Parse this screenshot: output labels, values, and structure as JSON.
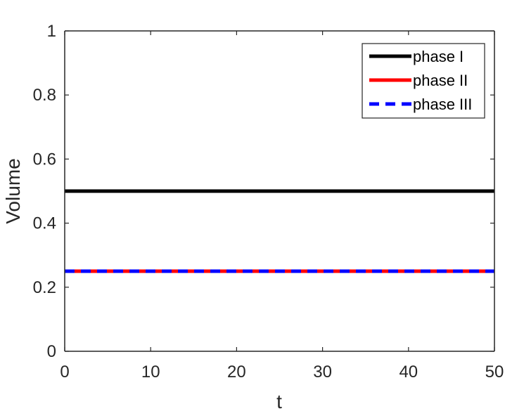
{
  "chart_data": {
    "type": "line",
    "title": "",
    "xlabel": "t",
    "ylabel": "Volume",
    "xlim": [
      0,
      50
    ],
    "ylim": [
      0,
      1
    ],
    "xticks": [
      0,
      10,
      20,
      30,
      40,
      50
    ],
    "yticks": [
      0,
      0.2,
      0.4,
      0.6,
      0.8,
      1
    ],
    "xtick_labels": [
      "0",
      "10",
      "20",
      "30",
      "40",
      "50"
    ],
    "ytick_labels": [
      "0",
      "0.2",
      "0.4",
      "0.6",
      "0.8",
      "1"
    ],
    "grid": false,
    "legend_position": "top-right",
    "series": [
      {
        "name": "phase I",
        "x": [
          0,
          50
        ],
        "y": [
          0.5,
          0.5
        ],
        "color": "#000000",
        "style": "solid"
      },
      {
        "name": "phase II",
        "x": [
          0,
          50
        ],
        "y": [
          0.25,
          0.25
        ],
        "color": "#ff0000",
        "style": "solid"
      },
      {
        "name": "phase III",
        "x": [
          0,
          50
        ],
        "y": [
          0.25,
          0.25
        ],
        "color": "#0000ff",
        "style": "dashed"
      }
    ]
  }
}
